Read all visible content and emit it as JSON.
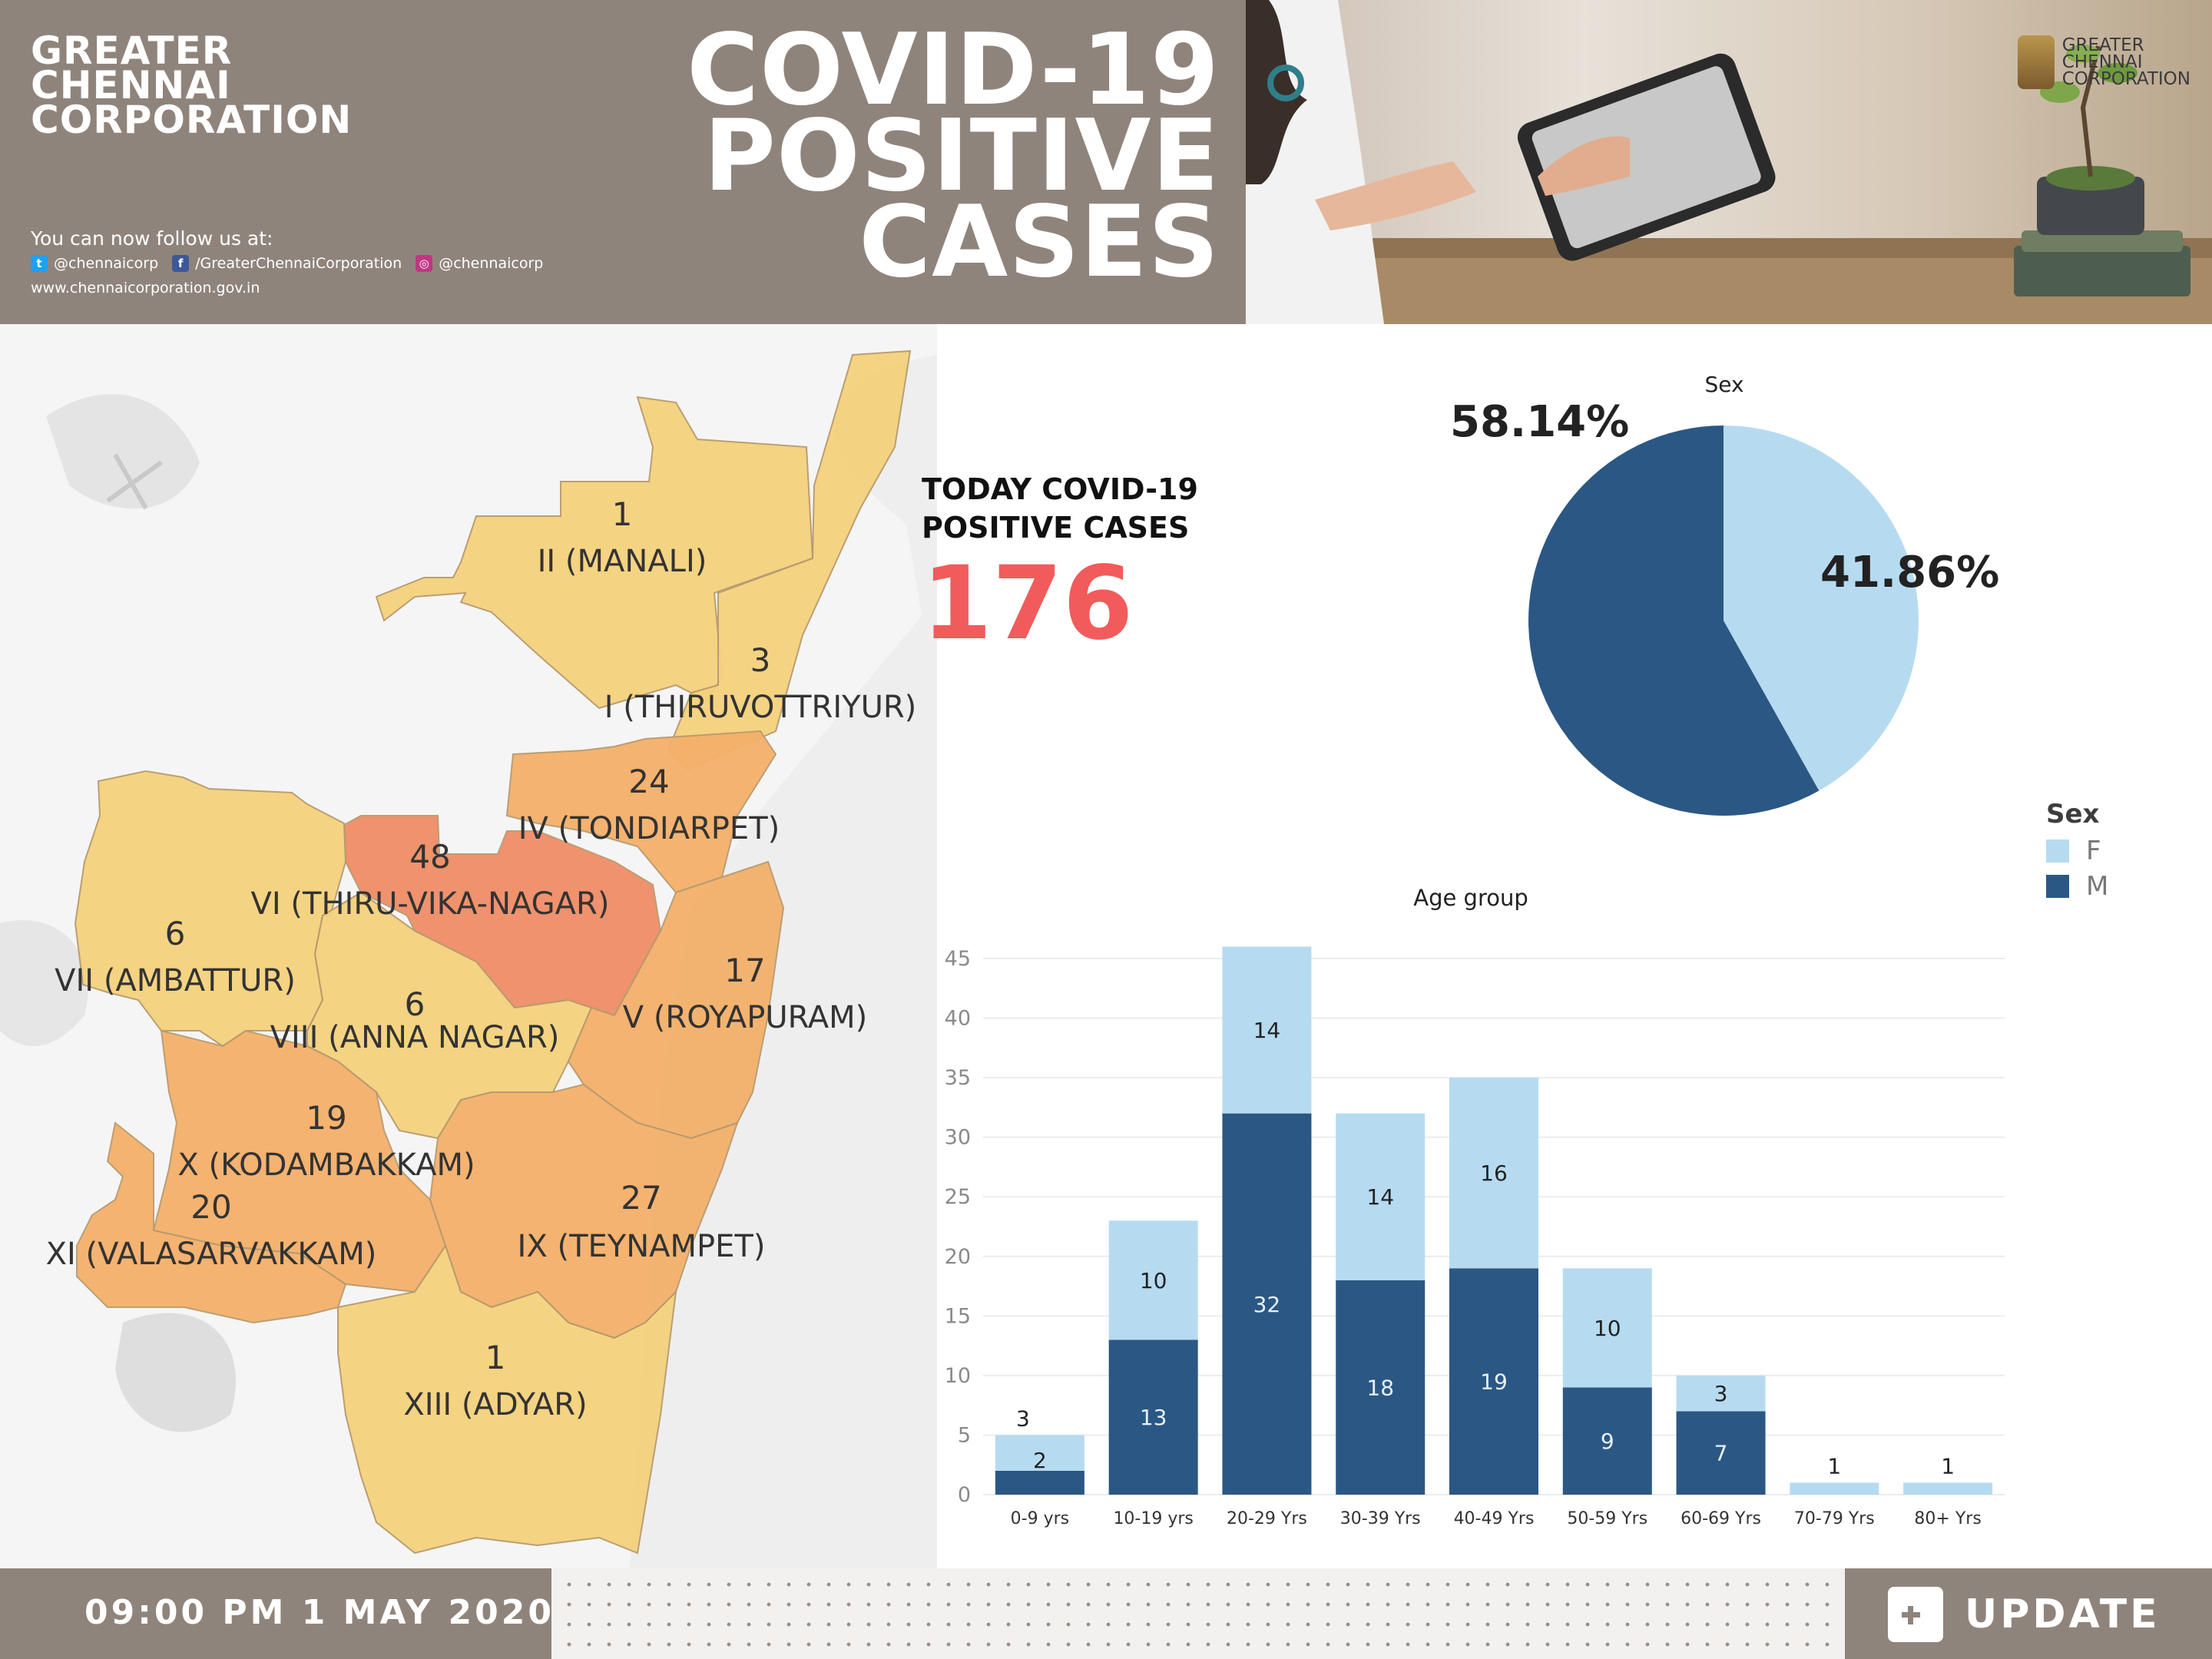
{
  "header": {
    "org_lines": [
      "GREATER",
      "CHENNAI",
      "CORPORATION"
    ],
    "headline_lines": [
      "COVID-19",
      "POSITIVE",
      "CASES"
    ],
    "follow_text": "You can now follow us at:",
    "twitter": "@chennaicorp",
    "facebook": "/GreaterChennaiCorporation",
    "instagram": "@chennaicorp",
    "website": "www.chennaicorporation.gov.in",
    "photo_logo_lines": [
      "GREATER",
      "CHENNAI",
      "CORPORATION"
    ]
  },
  "map": {
    "zones": [
      {
        "count": "1",
        "name": "II (MANALI)",
        "color": "#f4d27c"
      },
      {
        "count": "3",
        "name": "I (THIRUVOTTRIYUR)",
        "color": "#f4d27c"
      },
      {
        "count": "24",
        "name": "IV (TONDIARPET)",
        "color": "#f4b06a"
      },
      {
        "count": "48",
        "name": "VI (THIRU-VIKA-NAGAR)",
        "color": "#ef8d66"
      },
      {
        "count": "6",
        "name": "VII (AMBATTUR)",
        "color": "#f4d27c"
      },
      {
        "count": "6",
        "name": "VIII (ANNA NAGAR)",
        "color": "#f4d27c"
      },
      {
        "count": "17",
        "name": "V (ROYAPURAM)",
        "color": "#f4b06a"
      },
      {
        "count": "19",
        "name": "X (KODAMBAKKAM)",
        "color": "#f4b06a"
      },
      {
        "count": "20",
        "name": "XI (VALASARVAKKAM)",
        "color": "#f4b06a"
      },
      {
        "count": "27",
        "name": "IX (TEYNAMPET)",
        "color": "#f4b06a"
      },
      {
        "count": "1",
        "name": "XIII (ADYAR)",
        "color": "#f4d27c"
      }
    ]
  },
  "today": {
    "label_lines": [
      "TODAY COVID-19",
      "POSITIVE CASES"
    ],
    "value": "176"
  },
  "footer": {
    "datetime": "09:00 PM 1 MAY 2020",
    "update_label": "UPDATE"
  },
  "colors": {
    "female": "#b6dbf0",
    "male": "#2b5784",
    "brand": "#8f847c",
    "accent": "#f25b5b"
  },
  "chart_data": [
    {
      "type": "pie",
      "title": "Sex",
      "labels": [
        "F",
        "M"
      ],
      "values": [
        41.86,
        58.14
      ],
      "value_labels": [
        "41.86%",
        "58.14%"
      ]
    },
    {
      "type": "bar",
      "stacked": true,
      "title": "Age group",
      "categories": [
        "0-9 yrs",
        "10-19 yrs",
        "20-29 Yrs",
        "30-39 Yrs",
        "40-49 Yrs",
        "50-59 Yrs",
        "60-69 Yrs",
        "70-79 Yrs",
        "80+ Yrs"
      ],
      "series": [
        {
          "name": "M",
          "values": [
            2,
            13,
            32,
            18,
            19,
            9,
            7,
            0,
            0
          ]
        },
        {
          "name": "F",
          "values": [
            3,
            10,
            14,
            14,
            16,
            10,
            3,
            1,
            1
          ]
        }
      ],
      "ylim": [
        0,
        45
      ],
      "yticks": [
        0,
        5,
        10,
        15,
        20,
        25,
        30,
        35,
        40,
        45
      ],
      "grid": true,
      "legend_title": "Sex",
      "legend_entries": [
        "F",
        "M"
      ],
      "legend_position": "right"
    }
  ]
}
